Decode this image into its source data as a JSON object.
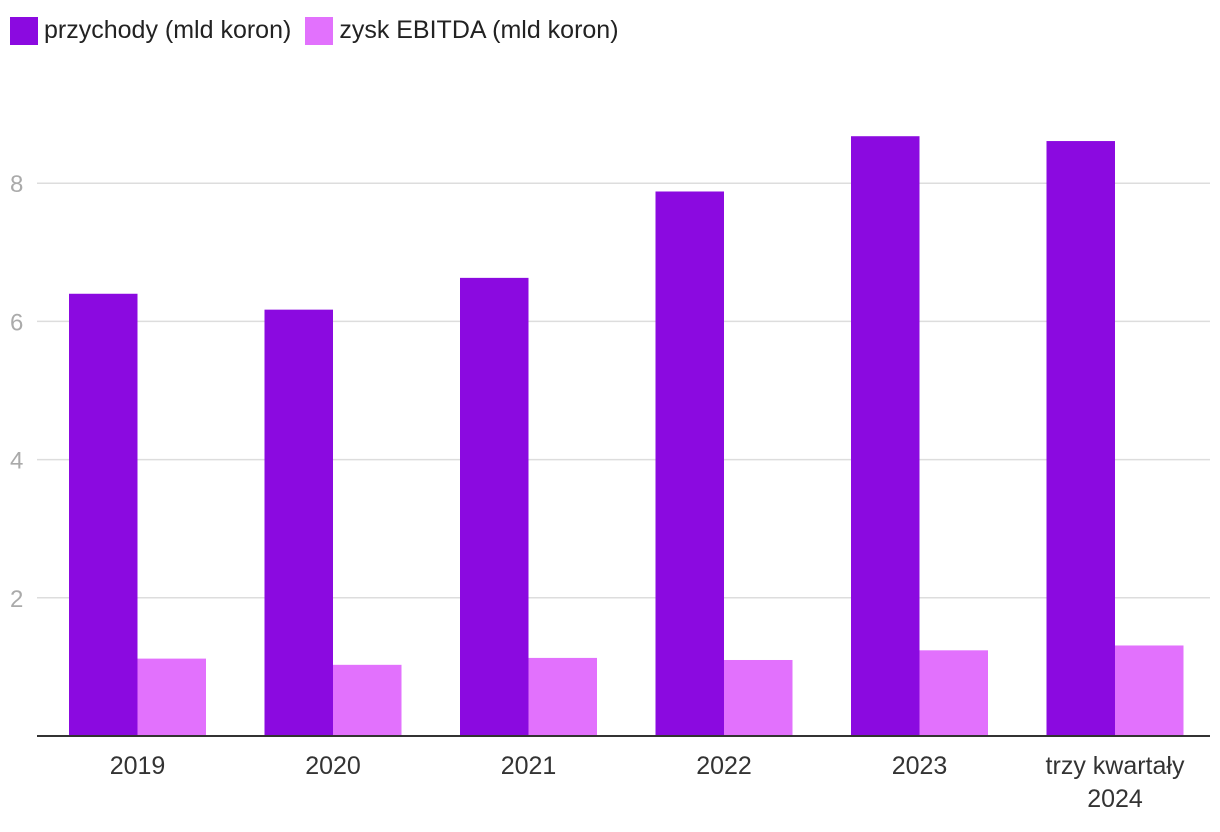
{
  "chart_data": {
    "type": "bar",
    "categories": [
      "2019",
      "2020",
      "2021",
      "2022",
      "2023",
      "trzy kwartały 2024"
    ],
    "category_lines": [
      [
        "2019"
      ],
      [
        "2020"
      ],
      [
        "2021"
      ],
      [
        "2022"
      ],
      [
        "2023"
      ],
      [
        "trzy kwartały",
        "2024"
      ]
    ],
    "series": [
      {
        "name": "przychody (mld koron)",
        "color": "#8B0AE0",
        "values": [
          6.4,
          6.17,
          6.63,
          7.88,
          8.68,
          8.61
        ]
      },
      {
        "name": "zysk EBITDA (mld koron)",
        "color": "#E271FD",
        "values": [
          1.12,
          1.03,
          1.13,
          1.1,
          1.24,
          1.31
        ]
      }
    ],
    "yticks": [
      2,
      4,
      6,
      8
    ],
    "ylim": [
      0,
      9.5
    ],
    "grid": true,
    "legend_position": "top-left"
  }
}
